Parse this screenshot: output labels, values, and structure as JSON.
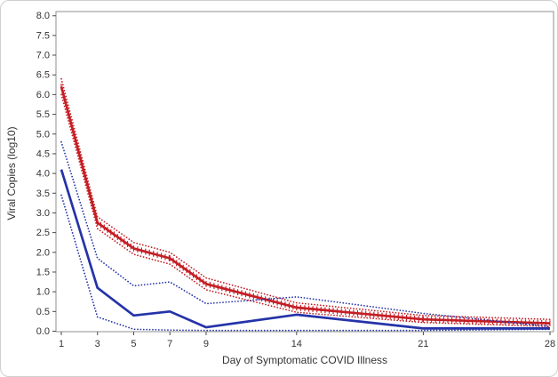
{
  "figure": {
    "background": "#ffffff",
    "outer_border_color": "#cfcfcf",
    "frame_color": "#8f8f8f",
    "tick_color": "#4a4a4a",
    "text_color": "#333333"
  },
  "chart_data": {
    "type": "line",
    "title": "",
    "xlabel": "Day of Symptomatic COVID Illness",
    "ylabel": "Viral Copies (log10)",
    "x": [
      1,
      3,
      5,
      7,
      9,
      14,
      21,
      28
    ],
    "x_tick_labels": [
      "1",
      "3",
      "5",
      "7",
      "9",
      "14",
      "21",
      "28"
    ],
    "y_tick_labels": [
      "0.0",
      "0.5",
      "1.0",
      "1.5",
      "2.0",
      "2.5",
      "3.0",
      "3.5",
      "4.0",
      "4.5",
      "5.0",
      "5.5",
      "6.0",
      "6.5",
      "7.0",
      "7.5",
      "8.0"
    ],
    "ylim": [
      0,
      8
    ],
    "y_tick_step": 0.5,
    "grid": false,
    "legend": "none",
    "series": [
      {
        "name": "red-upper-ci",
        "style": "dotted",
        "color": "#c41e25",
        "values": [
          6.4,
          2.9,
          2.25,
          2.0,
          1.35,
          0.72,
          0.4,
          0.3
        ]
      },
      {
        "name": "red-mean",
        "style": "solid-hatched",
        "color": "#c41e25",
        "values": [
          6.2,
          2.75,
          2.1,
          1.85,
          1.2,
          0.6,
          0.3,
          0.2
        ]
      },
      {
        "name": "red-lower-ci",
        "style": "dotted",
        "color": "#c41e25",
        "values": [
          6.0,
          2.6,
          1.95,
          1.7,
          1.05,
          0.48,
          0.22,
          0.12
        ]
      },
      {
        "name": "blue-upper-ci",
        "style": "dotted",
        "color": "#2433a8",
        "values": [
          4.8,
          1.85,
          1.15,
          1.25,
          0.7,
          0.87,
          0.45,
          0.12
        ]
      },
      {
        "name": "blue-mean",
        "style": "solid",
        "color": "#2433a8",
        "values": [
          4.1,
          1.1,
          0.4,
          0.5,
          0.1,
          0.42,
          0.07,
          0.07
        ]
      },
      {
        "name": "blue-lower-ci",
        "style": "dotted",
        "color": "#2433a8",
        "values": [
          3.45,
          0.36,
          0.05,
          0.03,
          0.02,
          0.02,
          0.02,
          0.05
        ]
      }
    ]
  }
}
